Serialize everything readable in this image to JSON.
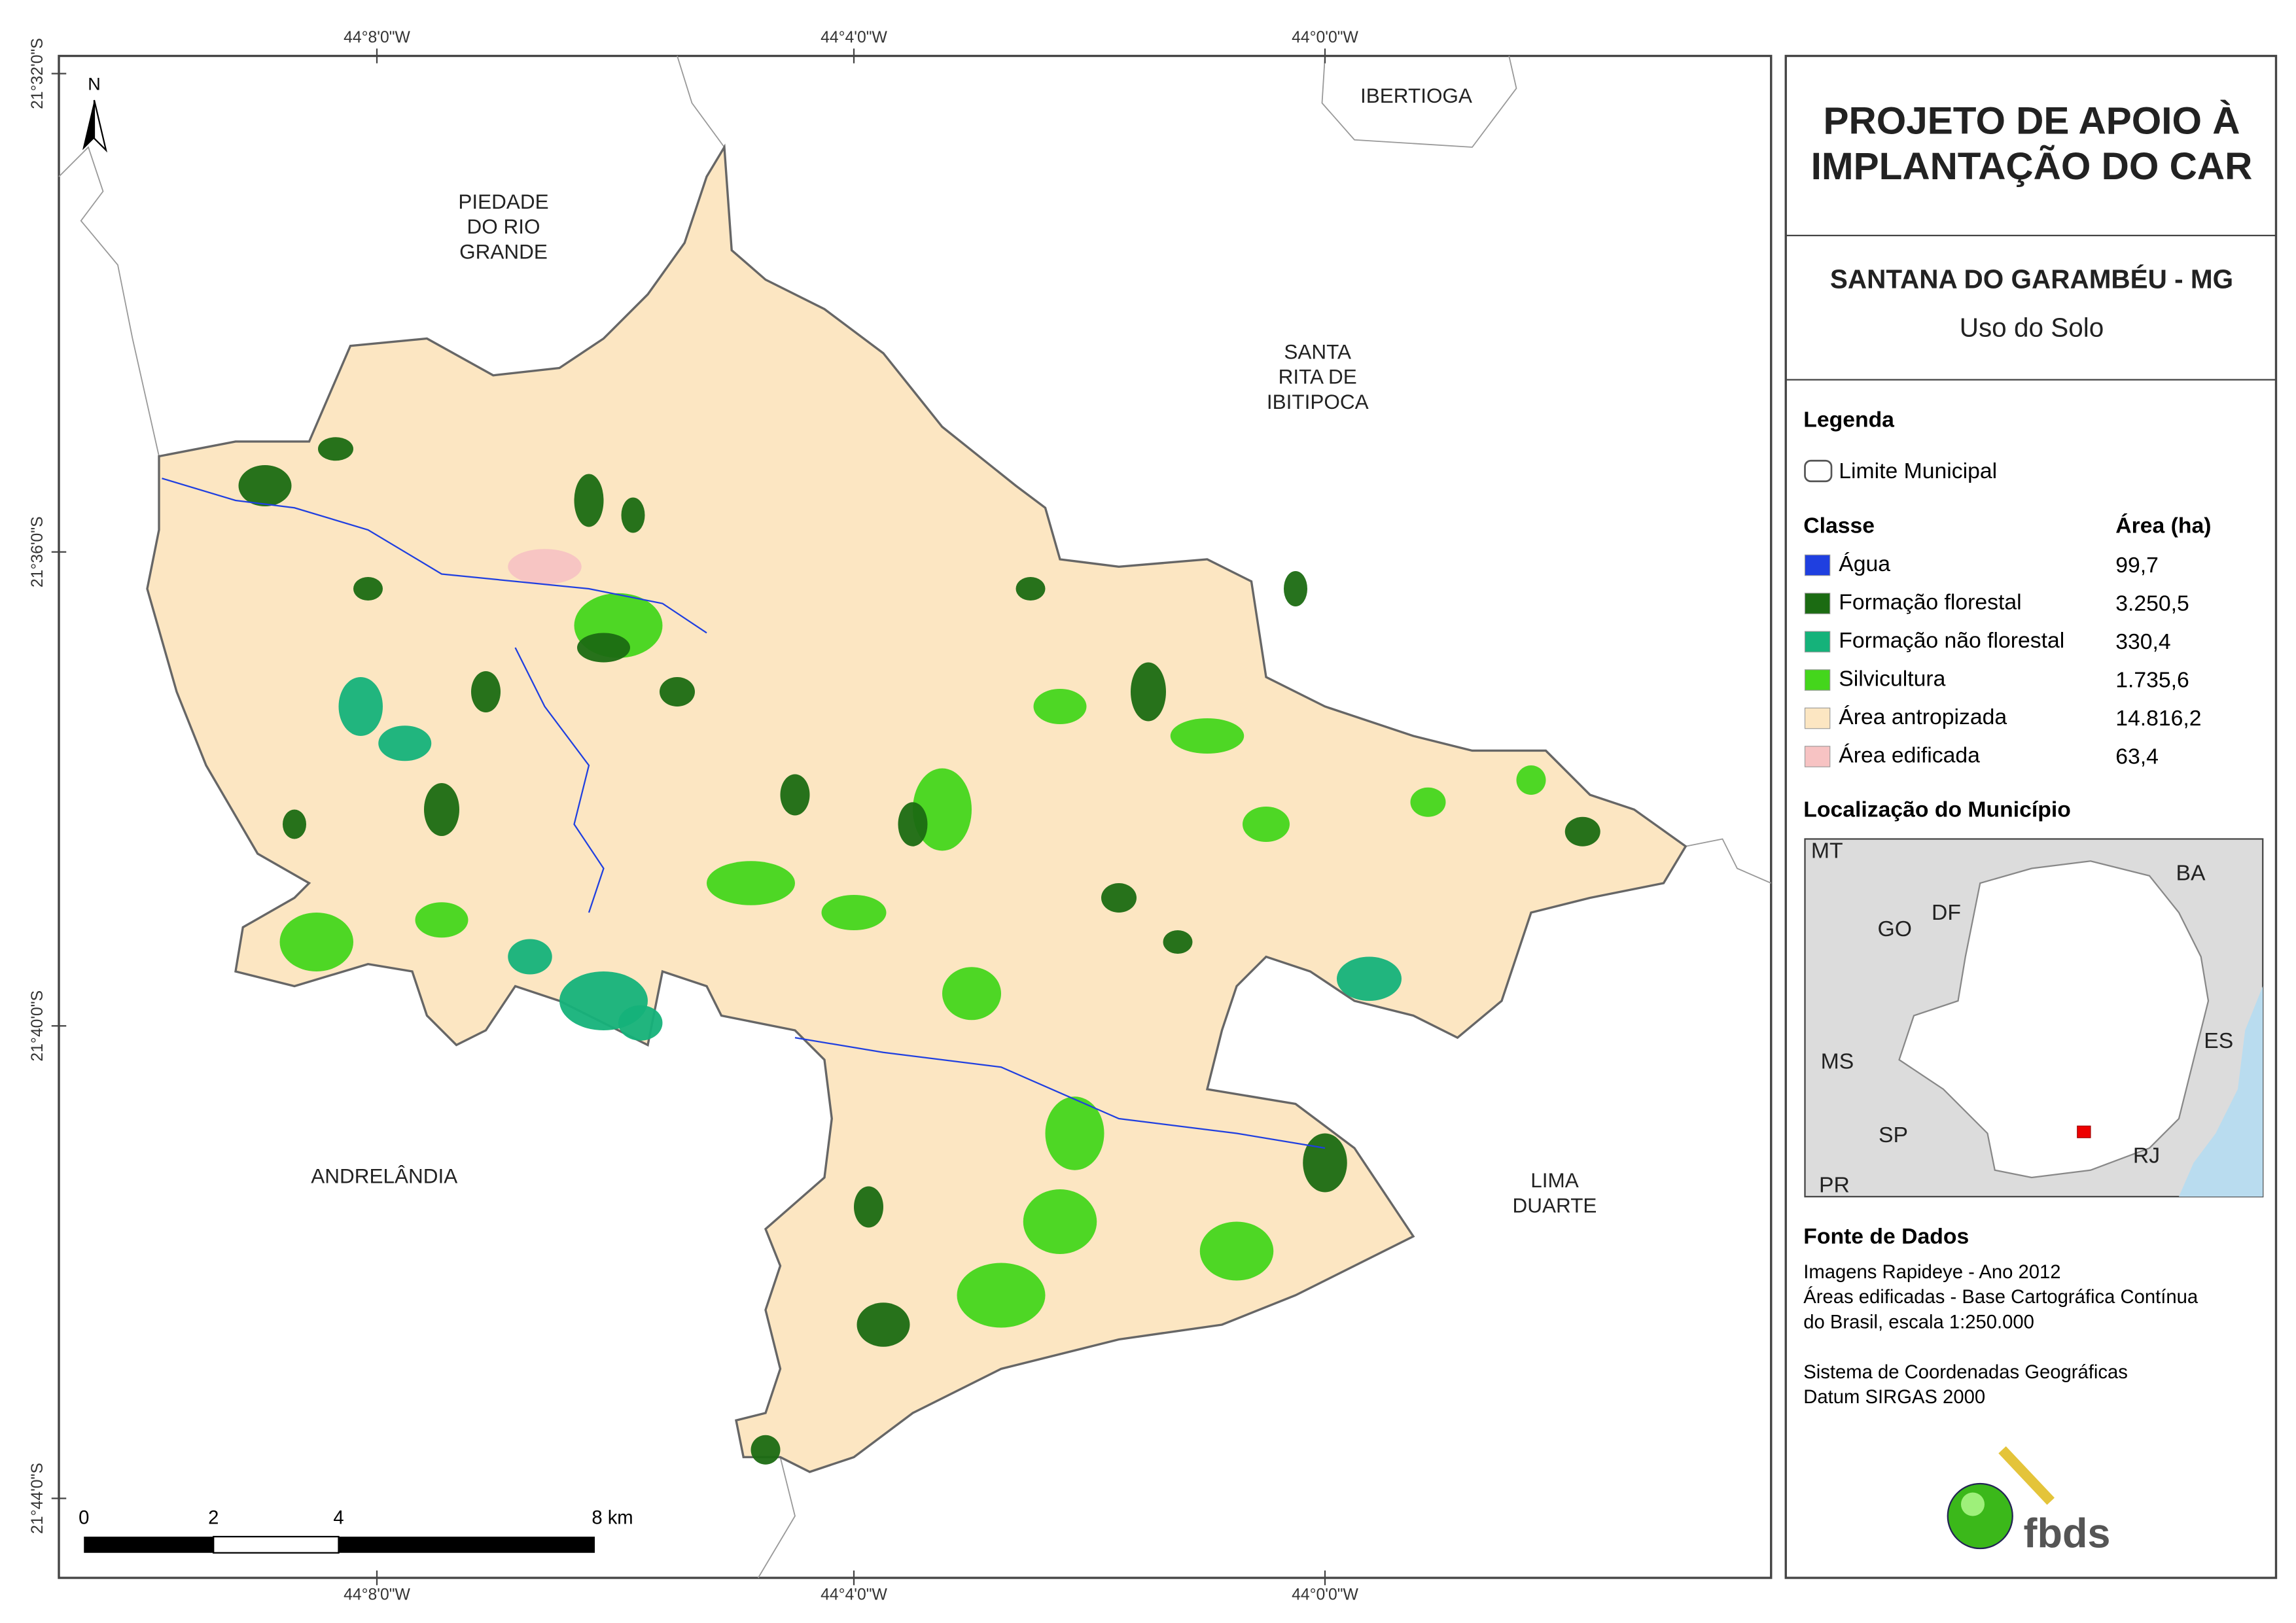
{
  "map": {
    "coordinates": {
      "top": [
        "44°8'0\"W",
        "44°4'0\"W",
        "44°0'0\"W"
      ],
      "bottom": [
        "44°8'0\"W",
        "44°4'0\"W",
        "44°0'0\"W"
      ],
      "left": [
        "21°32'0\"S",
        "21°36'0\"S",
        "21°40'0\"S",
        "21°44'0\"S"
      ]
    },
    "north": "N",
    "places": [
      {
        "lines": [
          "IBERTIOGA"
        ]
      },
      {
        "lines": [
          "PIEDADE",
          "DO RIO",
          "GRANDE"
        ]
      },
      {
        "lines": [
          "SANTA",
          "RITA DE",
          "IBITIPOCA"
        ]
      },
      {
        "lines": [
          "ANDRELÂNDIA"
        ]
      },
      {
        "lines": [
          "LIMA",
          "DUARTE"
        ]
      }
    ],
    "scale_bar": [
      "0",
      "2",
      "4",
      "8 km"
    ]
  },
  "panel": {
    "title_lines": [
      "PROJETO DE APOIO À",
      "IMPLANTAÇÃO DO CAR"
    ],
    "municipality": "SANTANA DO GARAMBÉU - MG",
    "subtitle": "Uso do Solo",
    "legend": {
      "heading": "Legenda",
      "boundary": "Limite Municipal",
      "class_heading": "Classe",
      "area_heading": "Área (ha)",
      "classes": [
        {
          "name": "Água",
          "area": "99,7",
          "color": "#1f3fe0"
        },
        {
          "name": "Formação florestal",
          "area": "3.250,5",
          "color": "#1b6b12"
        },
        {
          "name": "Formação não florestal",
          "area": "330,4",
          "color": "#15b27a"
        },
        {
          "name": "Silvicultura",
          "area": "1.735,6",
          "color": "#44d61c"
        },
        {
          "name": "Área antropizada",
          "area": "14.816,2",
          "color": "#fce6c2"
        },
        {
          "name": "Área edificada",
          "area": "63,4",
          "color": "#f7c3c3"
        }
      ]
    },
    "location": {
      "heading": "Localização do Município",
      "states": [
        "MT",
        "BA",
        "GO",
        "DF",
        "MS",
        "ES",
        "SP",
        "RJ",
        "PR"
      ]
    },
    "sources": {
      "heading": "Fonte de Dados",
      "lines": [
        "Imagens Rapideye - Ano 2012",
        "Áreas edificadas - Base Cartográfica Contínua",
        "do Brasil, escala 1:250.000",
        "",
        "Sistema de Coordenadas Geográficas",
        "Datum SIRGAS 2000"
      ]
    },
    "logo": "fbds"
  }
}
